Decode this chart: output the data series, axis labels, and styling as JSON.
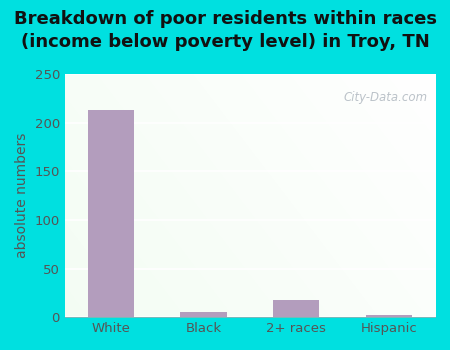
{
  "categories": [
    "White",
    "Black",
    "2+ races",
    "Hispanic"
  ],
  "values": [
    213,
    5,
    18,
    2
  ],
  "bar_color": "#b39dbd",
  "title_line1": "Breakdown of poor residents within races",
  "title_line2": "(income below poverty level) in Troy, TN",
  "ylabel": "absolute numbers",
  "ylim": [
    0,
    250
  ],
  "yticks": [
    0,
    50,
    100,
    150,
    200,
    250
  ],
  "bg_color": "#00e0e0",
  "title_fontsize": 13,
  "ylabel_fontsize": 10,
  "tick_fontsize": 9.5,
  "title_color": "#111111",
  "tick_color": "#555555",
  "watermark_text": "City-Data.com",
  "grid_color": "#cccccc",
  "bar_width": 0.5
}
